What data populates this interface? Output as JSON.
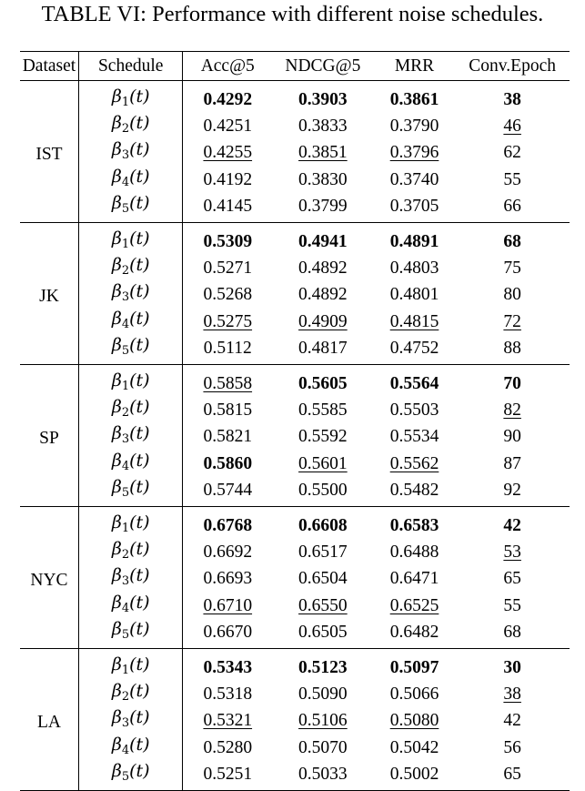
{
  "caption": "TABLE VI: Performance with different noise schedules.",
  "headers": [
    "Dataset",
    "Schedule",
    "Acc@5",
    "NDCG@5",
    "MRR",
    "Conv.Epoch"
  ],
  "groups": [
    {
      "dataset": "IST",
      "rows": [
        {
          "schedule": "1",
          "acc": "0.4292",
          "ndcg": "0.3903",
          "mrr": "0.3861",
          "epoch": "38",
          "fmt": [
            "b",
            "b",
            "b",
            "b"
          ]
        },
        {
          "schedule": "2",
          "acc": "0.4251",
          "ndcg": "0.3833",
          "mrr": "0.3790",
          "epoch": "46",
          "fmt": [
            "",
            "",
            "",
            "u"
          ]
        },
        {
          "schedule": "3",
          "acc": "0.4255",
          "ndcg": "0.3851",
          "mrr": "0.3796",
          "epoch": "62",
          "fmt": [
            "u",
            "u",
            "u",
            ""
          ]
        },
        {
          "schedule": "4",
          "acc": "0.4192",
          "ndcg": "0.3830",
          "mrr": "0.3740",
          "epoch": "55",
          "fmt": [
            "",
            "",
            "",
            ""
          ]
        },
        {
          "schedule": "5",
          "acc": "0.4145",
          "ndcg": "0.3799",
          "mrr": "0.3705",
          "epoch": "66",
          "fmt": [
            "",
            "",
            "",
            ""
          ]
        }
      ]
    },
    {
      "dataset": "JK",
      "rows": [
        {
          "schedule": "1",
          "acc": "0.5309",
          "ndcg": "0.4941",
          "mrr": "0.4891",
          "epoch": "68",
          "fmt": [
            "b",
            "b",
            "b",
            "b"
          ]
        },
        {
          "schedule": "2",
          "acc": "0.5271",
          "ndcg": "0.4892",
          "mrr": "0.4803",
          "epoch": "75",
          "fmt": [
            "",
            "",
            "",
            ""
          ]
        },
        {
          "schedule": "3",
          "acc": "0.5268",
          "ndcg": "0.4892",
          "mrr": "0.4801",
          "epoch": "80",
          "fmt": [
            "",
            "",
            "",
            ""
          ]
        },
        {
          "schedule": "4",
          "acc": "0.5275",
          "ndcg": "0.4909",
          "mrr": "0.4815",
          "epoch": "72",
          "fmt": [
            "u",
            "u",
            "u",
            "u"
          ]
        },
        {
          "schedule": "5",
          "acc": "0.5112",
          "ndcg": "0.4817",
          "mrr": "0.4752",
          "epoch": "88",
          "fmt": [
            "",
            "",
            "",
            ""
          ]
        }
      ]
    },
    {
      "dataset": "SP",
      "rows": [
        {
          "schedule": "1",
          "acc": "0.5858",
          "ndcg": "0.5605",
          "mrr": "0.5564",
          "epoch": "70",
          "fmt": [
            "u",
            "b",
            "b",
            "b"
          ]
        },
        {
          "schedule": "2",
          "acc": "0.5815",
          "ndcg": "0.5585",
          "mrr": "0.5503",
          "epoch": "82",
          "fmt": [
            "",
            "",
            "",
            "u"
          ]
        },
        {
          "schedule": "3",
          "acc": "0.5821",
          "ndcg": "0.5592",
          "mrr": "0.5534",
          "epoch": "90",
          "fmt": [
            "",
            "",
            "",
            ""
          ]
        },
        {
          "schedule": "4",
          "acc": "0.5860",
          "ndcg": "0.5601",
          "mrr": "0.5562",
          "epoch": "87",
          "fmt": [
            "b",
            "u",
            "u",
            ""
          ]
        },
        {
          "schedule": "5",
          "acc": "0.5744",
          "ndcg": "0.5500",
          "mrr": "0.5482",
          "epoch": "92",
          "fmt": [
            "",
            "",
            "",
            ""
          ]
        }
      ]
    },
    {
      "dataset": "NYC",
      "rows": [
        {
          "schedule": "1",
          "acc": "0.6768",
          "ndcg": "0.6608",
          "mrr": "0.6583",
          "epoch": "42",
          "fmt": [
            "b",
            "b",
            "b",
            "b"
          ]
        },
        {
          "schedule": "2",
          "acc": "0.6692",
          "ndcg": "0.6517",
          "mrr": "0.6488",
          "epoch": "53",
          "fmt": [
            "",
            "",
            "",
            "u"
          ]
        },
        {
          "schedule": "3",
          "acc": "0.6693",
          "ndcg": "0.6504",
          "mrr": "0.6471",
          "epoch": "65",
          "fmt": [
            "",
            "",
            "",
            ""
          ]
        },
        {
          "schedule": "4",
          "acc": "0.6710",
          "ndcg": "0.6550",
          "mrr": "0.6525",
          "epoch": "55",
          "fmt": [
            "u",
            "u",
            "u",
            ""
          ]
        },
        {
          "schedule": "5",
          "acc": "0.6670",
          "ndcg": "0.6505",
          "mrr": "0.6482",
          "epoch": "68",
          "fmt": [
            "",
            "",
            "",
            ""
          ]
        }
      ]
    },
    {
      "dataset": "LA",
      "rows": [
        {
          "schedule": "1",
          "acc": "0.5343",
          "ndcg": "0.5123",
          "mrr": "0.5097",
          "epoch": "30",
          "fmt": [
            "b",
            "b",
            "b",
            "b"
          ]
        },
        {
          "schedule": "2",
          "acc": "0.5318",
          "ndcg": "0.5090",
          "mrr": "0.5066",
          "epoch": "38",
          "fmt": [
            "",
            "",
            "",
            "u"
          ]
        },
        {
          "schedule": "3",
          "acc": "0.5321",
          "ndcg": "0.5106",
          "mrr": "0.5080",
          "epoch": "42",
          "fmt": [
            "u",
            "u",
            "u",
            ""
          ]
        },
        {
          "schedule": "4",
          "acc": "0.5280",
          "ndcg": "0.5070",
          "mrr": "0.5042",
          "epoch": "56",
          "fmt": [
            "",
            "",
            "",
            ""
          ]
        },
        {
          "schedule": "5",
          "acc": "0.5251",
          "ndcg": "0.5033",
          "mrr": "0.5002",
          "epoch": "65",
          "fmt": [
            "",
            "",
            "",
            ""
          ]
        }
      ]
    }
  ]
}
